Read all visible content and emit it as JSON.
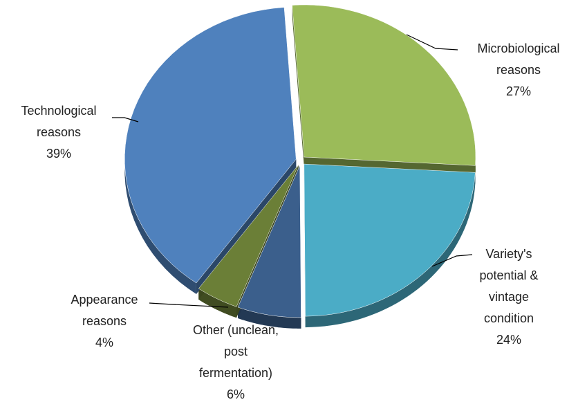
{
  "chart_data": {
    "type": "pie",
    "categories": [
      "Microbiological reasons",
      "Variety's potential & vintage condition",
      "Other (unclean, post fermentation)",
      "Appearance reasons",
      "Technological reasons"
    ],
    "values": [
      27,
      24,
      6,
      4,
      39
    ],
    "value_labels": [
      "27%",
      "24%",
      "6%",
      "4%",
      "39%"
    ],
    "colors": [
      "#9bbb59",
      "#4bacc6",
      "#3b5f8c",
      "#6b7f37",
      "#4f81bd"
    ]
  }
}
